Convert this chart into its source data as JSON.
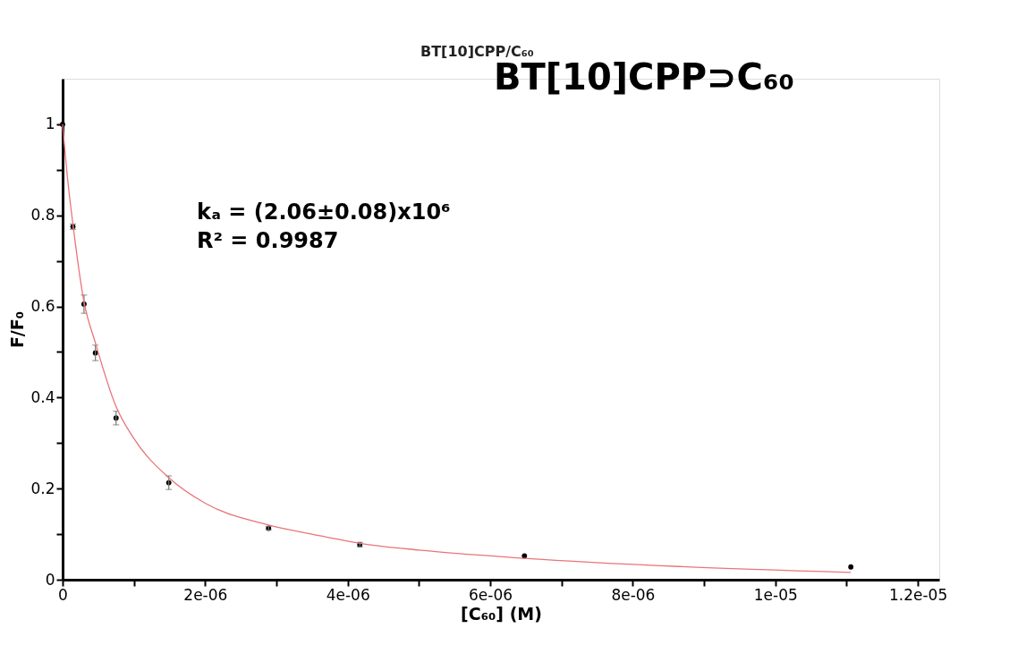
{
  "chart_data": {
    "type": "scatter",
    "title": "BT[10]CPP⊃C₆₀",
    "xlabel": "[C₆₀] (M)",
    "ylabel": "F/F₀",
    "annotations": [
      "BT[10]CPP/C₆₀",
      "kₐ = (2.06±0.08)x10⁶",
      "R² = 0.9987"
    ],
    "xlim": [
      0,
      1.23e-05
    ],
    "ylim": [
      0,
      1.1
    ],
    "xticks": [
      0,
      {
        "value": 1e-06,
        "label": null
      },
      {
        "value": 2e-06,
        "label": "2e-06"
      },
      {
        "value": 3e-06,
        "label": null
      },
      {
        "value": 4e-06,
        "label": "4e-06"
      },
      {
        "value": 5e-06,
        "label": null
      },
      {
        "value": 6e-06,
        "label": "6e-06"
      },
      {
        "value": 7e-06,
        "label": null
      },
      {
        "value": 8e-06,
        "label": "8e-06"
      },
      {
        "value": 9e-06,
        "label": null
      },
      {
        "value": 1e-05,
        "label": "1e-05"
      },
      {
        "value": 1.1e-05,
        "label": null
      },
      {
        "value": 1.2e-05,
        "label": "1.2e-05"
      }
    ],
    "yticks": [
      0,
      {
        "value": 0.1,
        "label": null
      },
      0.2,
      {
        "value": 0.3,
        "label": null
      },
      0.4,
      {
        "value": 0.5,
        "label": null
      },
      0.6,
      {
        "value": 0.7,
        "label": null
      },
      0.8,
      {
        "value": 0.9,
        "label": null
      },
      1
    ],
    "grid": false,
    "series": [
      {
        "color": "#000000",
        "marker": "circle",
        "x": [
          0,
          1.45e-07,
          3e-07,
          4.6e-07,
          7.5e-07,
          1.49e-06,
          2.89e-06,
          4.17e-06,
          6.48e-06,
          1.106e-05
        ],
        "values": [
          1.0,
          0.775,
          0.605,
          0.498,
          0.355,
          0.213,
          0.113,
          0.077,
          0.052,
          0.028
        ],
        "errors": [
          null,
          0.006,
          0.02,
          0.017,
          0.015,
          0.015,
          0.004,
          0.005,
          null,
          null
        ]
      },
      {
        "type": "line",
        "color": "#e8757a",
        "x": [
          0,
          7e-08,
          1.45e-07,
          3e-07,
          4.6e-07,
          7.5e-07,
          1e-06,
          1.49e-06,
          2e-06,
          2.89e-06,
          3.5e-06,
          4.17e-06,
          5e-06,
          6.48e-06,
          8.65e-06,
          1.106e-05
        ],
        "values": [
          1.0,
          0.88,
          0.78,
          0.61,
          0.52,
          0.38,
          0.31,
          0.224,
          0.168,
          0.12,
          0.1,
          0.08,
          0.065,
          0.047,
          0.029,
          0.016
        ]
      }
    ]
  }
}
